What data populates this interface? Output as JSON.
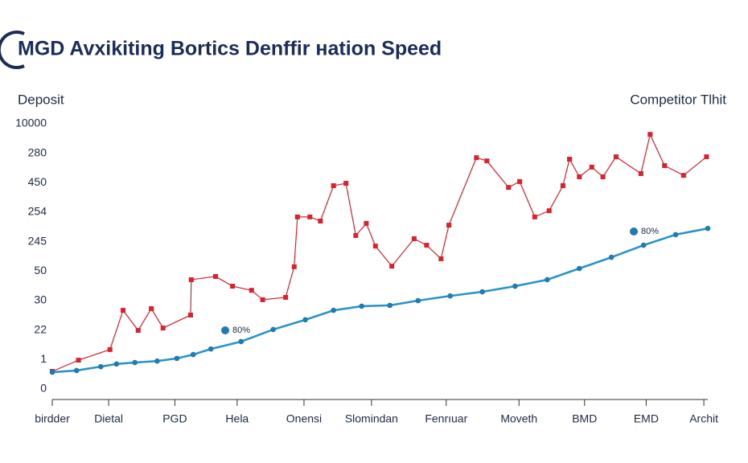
{
  "chart_data": {
    "type": "line",
    "title": "MGD Avxikiting Bortics Denffir нation Speed",
    "xlim": [
      0,
      10
    ],
    "xticks": [
      {
        "value": 0,
        "label": "birdder"
      },
      {
        "value": 0.86,
        "label": "Dietal"
      },
      {
        "value": 1.87,
        "label": "PGD"
      },
      {
        "value": 2.82,
        "label": "Hela"
      },
      {
        "value": 3.84,
        "label": "Onensi"
      },
      {
        "value": 4.87,
        "label": "Slomindan"
      },
      {
        "value": 6.01,
        "label": "Fenrıuar"
      },
      {
        "value": 7.12,
        "label": "Moveth"
      },
      {
        "value": 8.12,
        "label": "BMD"
      },
      {
        "value": 9.06,
        "label": "EMD"
      },
      {
        "value": 9.94,
        "label": "Archit"
      }
    ],
    "ylim": [
      0,
      9
    ],
    "yticks": [
      0,
      1,
      {
        "value": 2,
        "label": "22"
      },
      {
        "value": 3,
        "label": "30"
      },
      {
        "value": 4,
        "label": "50"
      },
      {
        "value": 5,
        "label": "245"
      },
      {
        "value": 6,
        "label": "254"
      },
      {
        "value": 7,
        "label": "450"
      },
      {
        "value": 8,
        "label": "280"
      },
      {
        "value": 9,
        "label": "10000"
      }
    ],
    "series": [
      {
        "name": "Competitor Tlhit",
        "color": "#d8232f",
        "x": [
          0,
          0.4,
          0.88,
          1.08,
          1.31,
          1.51,
          1.69,
          2.11,
          2.12,
          2.49,
          2.75,
          3.04,
          3.21,
          3.56,
          3.69,
          3.74,
          3.93,
          4.09,
          4.29,
          4.48,
          4.63,
          4.79,
          4.93,
          5.18,
          5.52,
          5.71,
          5.93,
          6.05,
          6.47,
          6.63,
          6.96,
          7.13,
          7.36,
          7.58,
          7.79,
          7.89,
          8.04,
          8.23,
          8.4,
          8.6,
          8.98,
          9.12,
          9.34,
          9.63,
          9.98
        ],
        "values": [
          0.6,
          0.98,
          1.34,
          2.67,
          1.99,
          2.73,
          2.07,
          2.51,
          3.71,
          3.82,
          3.49,
          3.35,
          3.03,
          3.11,
          4.15,
          5.84,
          5.84,
          5.7,
          6.9,
          6.98,
          5.21,
          5.62,
          4.85,
          4.17,
          5.1,
          4.88,
          4.42,
          5.56,
          7.85,
          7.74,
          6.84,
          7.04,
          5.84,
          6.05,
          6.9,
          7.8,
          7.2,
          7.53,
          7.2,
          7.88,
          7.31,
          8.64,
          7.58,
          7.25,
          7.88
        ]
      },
      {
        "name": "Deposit",
        "color": "#2b93c8",
        "x": [
          0,
          0.37,
          0.74,
          0.98,
          1.26,
          1.6,
          1.9,
          2.15,
          2.42,
          2.88,
          3.37,
          3.86,
          4.29,
          4.72,
          5.15,
          5.58,
          6.07,
          6.56,
          7.06,
          7.55,
          8.04,
          8.53,
          9.02,
          9.51,
          10
        ],
        "values": [
          0.57,
          0.63,
          0.76,
          0.85,
          0.9,
          0.95,
          1.04,
          1.17,
          1.36,
          1.61,
          2.02,
          2.35,
          2.67,
          2.81,
          2.84,
          3.0,
          3.16,
          3.3,
          3.49,
          3.71,
          4.09,
          4.47,
          4.88,
          5.24,
          5.45
        ]
      }
    ],
    "annotations": [
      "80%",
      "80%"
    ]
  }
}
